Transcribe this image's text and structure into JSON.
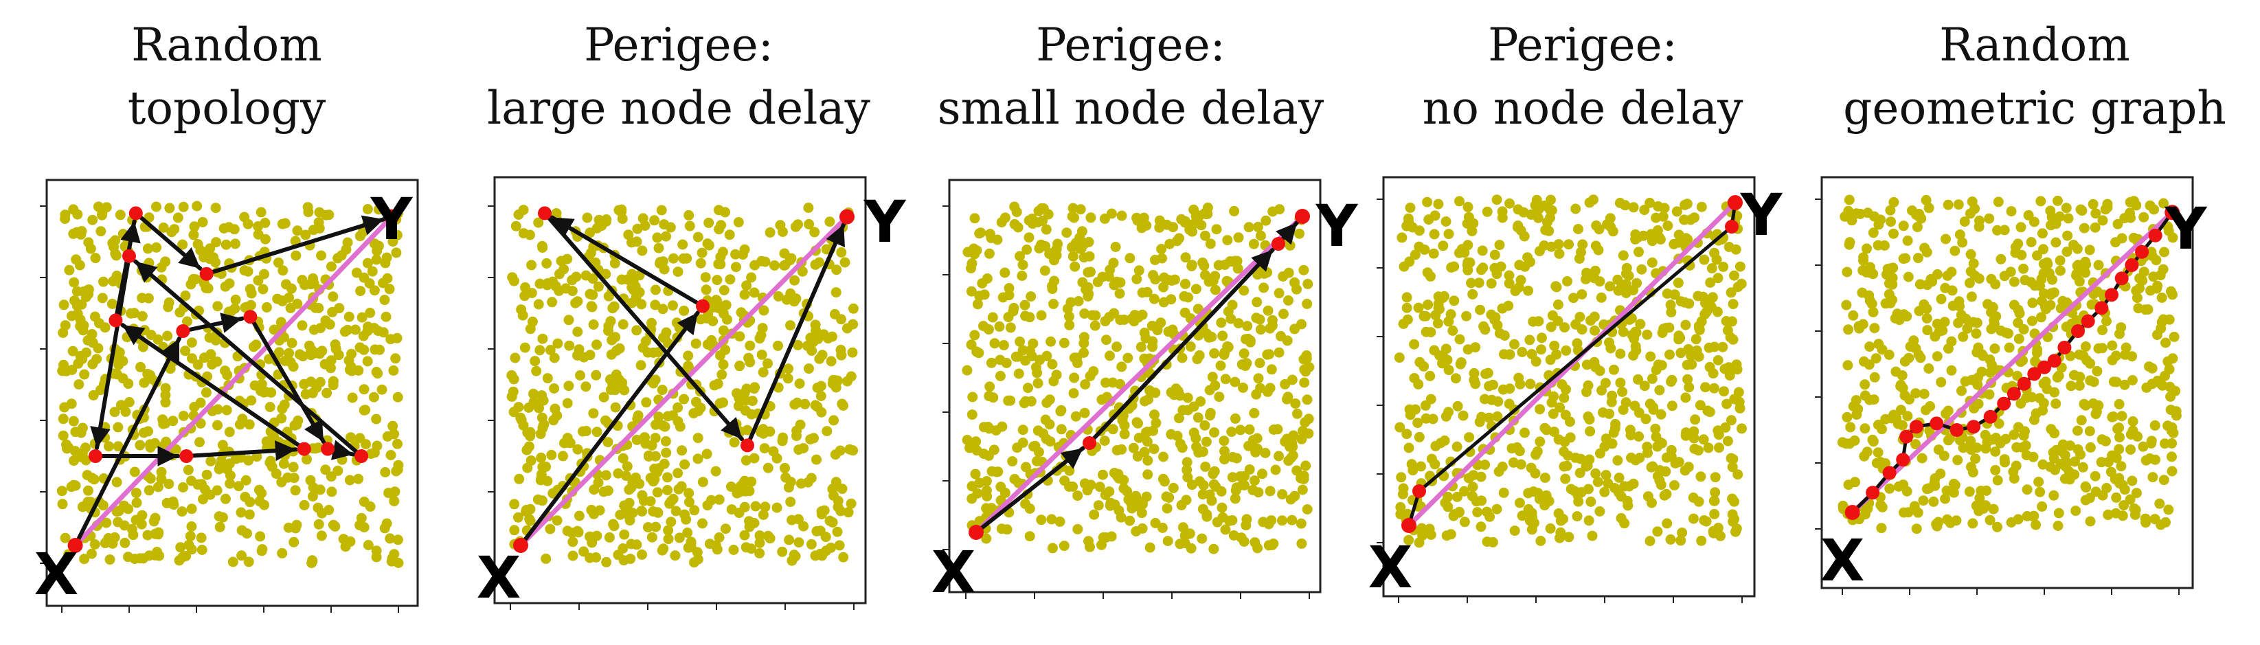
{
  "colors": {
    "node": "#c2b800",
    "endpoint": "#ee1111",
    "straight": "#e070d0",
    "path": "#111111",
    "frame": "#222222"
  },
  "panels": [
    {
      "title_lines": [
        "Random",
        "topology"
      ],
      "start_label": "X",
      "end_label": "Y",
      "arrows": true,
      "path": [
        [
          0.04,
          0.05
        ],
        [
          0.36,
          0.65
        ],
        [
          0.56,
          0.69
        ],
        [
          0.79,
          0.32
        ],
        [
          0.89,
          0.3
        ],
        [
          0.2,
          0.86
        ],
        [
          0.1,
          0.3
        ],
        [
          0.37,
          0.3
        ],
        [
          0.72,
          0.32
        ],
        [
          0.16,
          0.68
        ],
        [
          0.22,
          0.98
        ],
        [
          0.43,
          0.81
        ],
        [
          0.98,
          0.97
        ]
      ]
    },
    {
      "title_lines": [
        "Perigee:",
        "large node delay"
      ],
      "start_label": "X",
      "end_label": "Y",
      "arrows": true,
      "path": [
        [
          0.03,
          0.05
        ],
        [
          0.56,
          0.72
        ],
        [
          0.1,
          0.98
        ],
        [
          0.69,
          0.33
        ],
        [
          0.98,
          0.97
        ]
      ]
    },
    {
      "title_lines": [
        "Perigee:",
        "small node delay"
      ],
      "start_label": "X",
      "end_label": "Y",
      "arrows": true,
      "path": [
        [
          0.03,
          0.05
        ],
        [
          0.36,
          0.31
        ],
        [
          0.91,
          0.89
        ],
        [
          0.98,
          0.97
        ]
      ]
    },
    {
      "title_lines": [
        "Perigee:",
        "no node delay"
      ],
      "start_label": "X",
      "end_label": "Y",
      "arrows": false,
      "path": [
        [
          0.03,
          0.05
        ],
        [
          0.06,
          0.15
        ],
        [
          0.97,
          0.92
        ],
        [
          0.98,
          0.99
        ]
      ]
    },
    {
      "title_lines": [
        "Random",
        "geometric graph"
      ],
      "start_label": "X",
      "end_label": "Y",
      "arrows": false,
      "path": [
        [
          0.03,
          0.05
        ],
        [
          0.09,
          0.11
        ],
        [
          0.14,
          0.17
        ],
        [
          0.18,
          0.21
        ],
        [
          0.19,
          0.28
        ],
        [
          0.22,
          0.31
        ],
        [
          0.28,
          0.32
        ],
        [
          0.34,
          0.3
        ],
        [
          0.39,
          0.31
        ],
        [
          0.44,
          0.34
        ],
        [
          0.48,
          0.38
        ],
        [
          0.51,
          0.41
        ],
        [
          0.54,
          0.44
        ],
        [
          0.57,
          0.47
        ],
        [
          0.6,
          0.49
        ],
        [
          0.63,
          0.51
        ],
        [
          0.66,
          0.55
        ],
        [
          0.7,
          0.6
        ],
        [
          0.73,
          0.63
        ],
        [
          0.77,
          0.67
        ],
        [
          0.8,
          0.71
        ],
        [
          0.83,
          0.76
        ],
        [
          0.86,
          0.8
        ],
        [
          0.89,
          0.84
        ],
        [
          0.93,
          0.89
        ],
        [
          0.98,
          0.96
        ]
      ]
    }
  ]
}
